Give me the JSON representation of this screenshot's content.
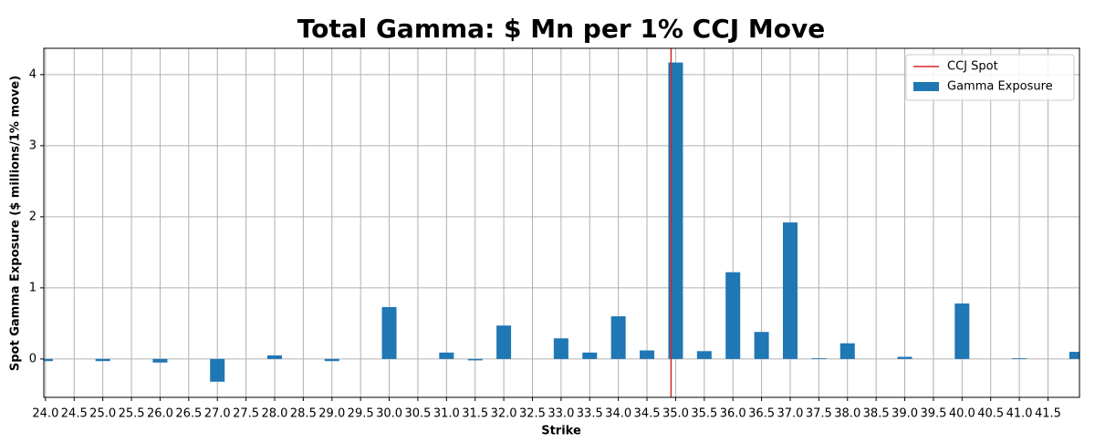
{
  "chart_data": {
    "type": "bar",
    "title": "Total Gamma: $ Mn per 1% CCJ Move",
    "x_label": "Strike",
    "y_label": "Spot Gamma Exposure ($ millions/1% move)",
    "x": [
      24.0,
      25.0,
      26.0,
      27.0,
      28.0,
      29.0,
      30.0,
      31.0,
      31.5,
      32.0,
      33.0,
      33.5,
      34.0,
      34.5,
      35.0,
      35.5,
      36.0,
      36.5,
      37.0,
      37.5,
      38.0,
      39.0,
      40.0,
      41.0,
      42.0
    ],
    "series": [
      {
        "name": "Gamma Exposure",
        "color": "#1f77b4",
        "values": [
          -0.03,
          -0.03,
          -0.05,
          -0.32,
          0.05,
          -0.03,
          0.73,
          0.09,
          -0.02,
          0.47,
          0.29,
          0.09,
          0.6,
          0.12,
          4.17,
          0.11,
          1.22,
          0.38,
          1.92,
          0.01,
          0.22,
          0.03,
          0.78,
          0.01,
          0.1
        ]
      }
    ],
    "spot": {
      "name": "CCJ Spot",
      "value": 34.92,
      "color": "#d62728"
    },
    "xlim": [
      23.97,
      42.05
    ],
    "ylim": [
      -0.54,
      4.37
    ],
    "xticks": [
      {
        "value": 24.0,
        "label": "24.0"
      },
      {
        "value": 24.5,
        "label": "24.5"
      },
      {
        "value": 25.0,
        "label": "25.0"
      },
      {
        "value": 25.5,
        "label": "25.5"
      },
      {
        "value": 26.0,
        "label": "26.0"
      },
      {
        "value": 26.5,
        "label": "26.5"
      },
      {
        "value": 27.0,
        "label": "27.0"
      },
      {
        "value": 27.5,
        "label": "27.5"
      },
      {
        "value": 28.0,
        "label": "28.0"
      },
      {
        "value": 28.5,
        "label": "28.5"
      },
      {
        "value": 29.0,
        "label": "29.0"
      },
      {
        "value": 29.5,
        "label": "29.5"
      },
      {
        "value": 30.0,
        "label": "30.0"
      },
      {
        "value": 30.5,
        "label": "30.5"
      },
      {
        "value": 31.0,
        "label": "31.0"
      },
      {
        "value": 31.5,
        "label": "31.5"
      },
      {
        "value": 32.0,
        "label": "32.0"
      },
      {
        "value": 32.5,
        "label": "32.5"
      },
      {
        "value": 33.0,
        "label": "33.0"
      },
      {
        "value": 33.5,
        "label": "33.5"
      },
      {
        "value": 34.0,
        "label": "34.0"
      },
      {
        "value": 34.5,
        "label": "34.5"
      },
      {
        "value": 35.0,
        "label": "35.0"
      },
      {
        "value": 35.5,
        "label": "35.5"
      },
      {
        "value": 36.0,
        "label": "36.0"
      },
      {
        "value": 36.5,
        "label": "36.5"
      },
      {
        "value": 37.0,
        "label": "37.0"
      },
      {
        "value": 37.5,
        "label": "37.5"
      },
      {
        "value": 38.0,
        "label": "38.0"
      },
      {
        "value": 38.5,
        "label": "38.5"
      },
      {
        "value": 39.0,
        "label": "39.0"
      },
      {
        "value": 39.5,
        "label": "39.5"
      },
      {
        "value": 40.0,
        "label": "40.0"
      },
      {
        "value": 40.5,
        "label": "40.5"
      },
      {
        "value": 41.0,
        "label": "41.0"
      },
      {
        "value": 41.5,
        "label": "41.5"
      }
    ],
    "yticks": [
      0,
      1,
      2,
      3,
      4
    ],
    "grid": true,
    "legend": "upper right"
  }
}
